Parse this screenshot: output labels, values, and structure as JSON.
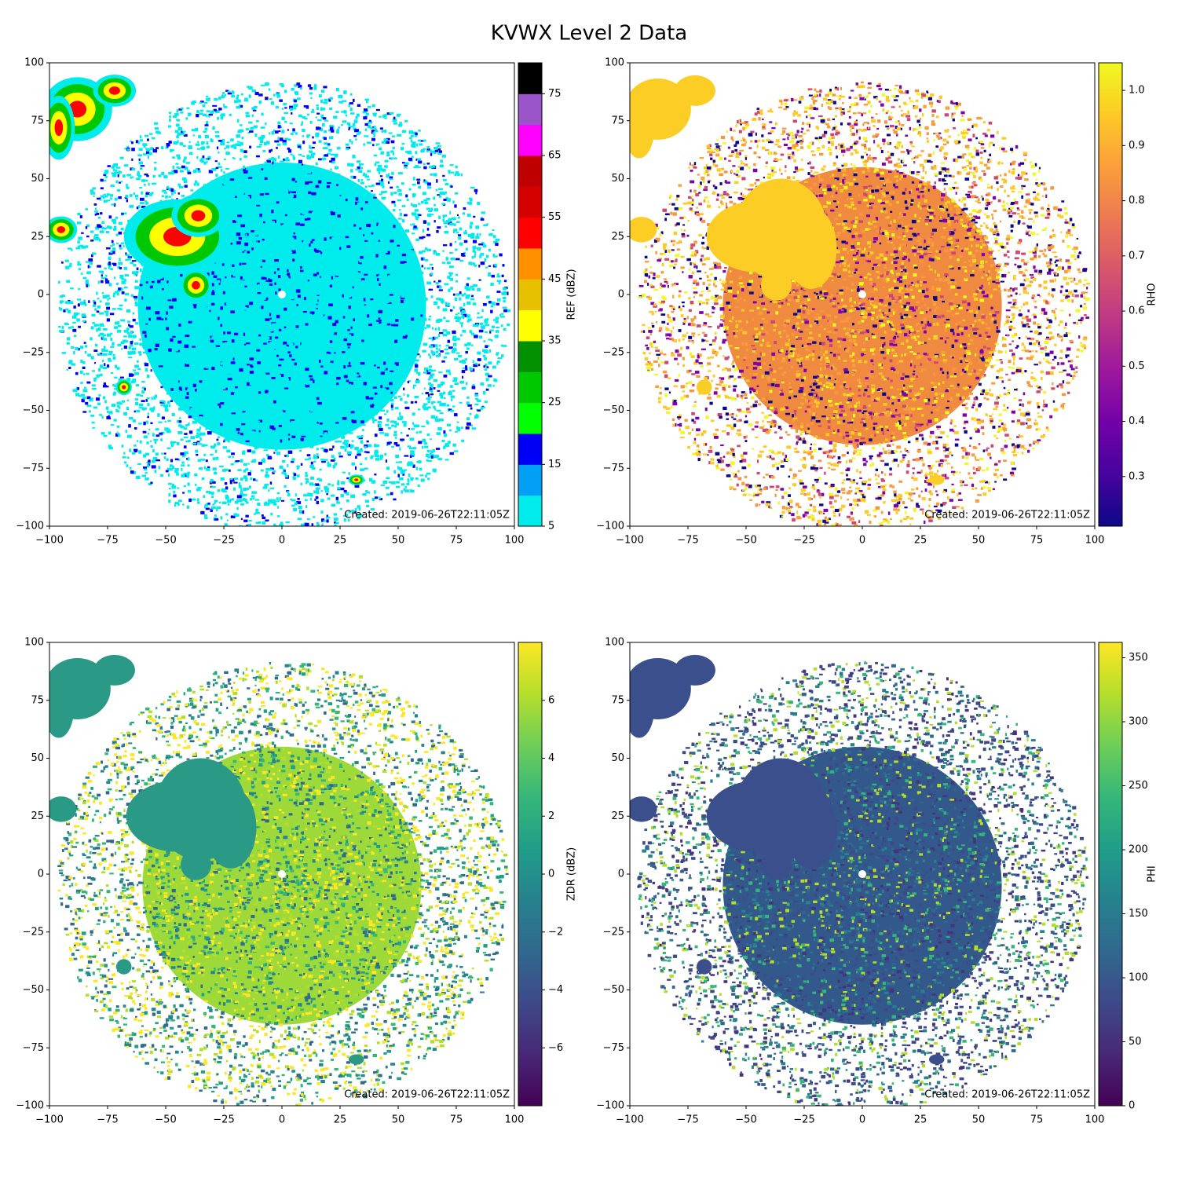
{
  "title": "KVWX Level 2 Data",
  "chart_data": [
    {
      "type": "radar",
      "xlim": [
        -100,
        100
      ],
      "ylim": [
        -100,
        100
      ],
      "xticks": [
        {
          "value": -100,
          "label": "−100"
        },
        {
          "value": -75,
          "label": "−75"
        },
        {
          "value": -50,
          "label": "−50"
        },
        {
          "value": -25,
          "label": "−25"
        },
        0,
        25,
        50,
        75,
        100
      ],
      "yticks": [
        {
          "value": -100,
          "label": "−100"
        },
        {
          "value": -75,
          "label": "−75"
        },
        {
          "value": -50,
          "label": "−50"
        },
        {
          "value": -25,
          "label": "−25"
        },
        0,
        25,
        50,
        75,
        100
      ],
      "annotation": "Created: 2019-06-26T22:11:05Z",
      "colorbar": {
        "label": "REF (dBZ)",
        "lim": [
          5,
          80
        ],
        "ticks": [
          5,
          15,
          25,
          35,
          45,
          55,
          65,
          75
        ],
        "discrete": true,
        "colors": [
          "#00ecec",
          "#01a0f6",
          "#0000f6",
          "#00ff00",
          "#00c800",
          "#009000",
          "#ffff00",
          "#e7c000",
          "#ff9000",
          "#ff0000",
          "#d60000",
          "#c00000",
          "#ff00ff",
          "#9955c9",
          "#000000"
        ]
      }
    },
    {
      "type": "radar",
      "xlim": [
        -100,
        100
      ],
      "ylim": [
        -100,
        100
      ],
      "xticks": [
        {
          "value": -100,
          "label": "−100"
        },
        {
          "value": -75,
          "label": "−75"
        },
        {
          "value": -50,
          "label": "−50"
        },
        {
          "value": -25,
          "label": "−25"
        },
        0,
        25,
        50,
        75,
        100
      ],
      "yticks": [
        {
          "value": -100,
          "label": "−100"
        },
        {
          "value": -75,
          "label": "−75"
        },
        {
          "value": -50,
          "label": "−50"
        },
        {
          "value": -25,
          "label": "−25"
        },
        0,
        25,
        50,
        75,
        100
      ],
      "annotation": "Created: 2019-06-26T22:11:05Z",
      "colorbar": {
        "label": "RHO",
        "lim": [
          0.21,
          1.05
        ],
        "ticks": [
          0.3,
          0.4,
          0.5,
          0.6,
          0.7,
          0.8,
          0.9,
          {
            "value": 1.0,
            "label": "1.0"
          }
        ],
        "discrete": false,
        "colors": [
          "#0d0887",
          "#46039f",
          "#7201a8",
          "#9c179e",
          "#bd3786",
          "#d8576b",
          "#ed7953",
          "#fb9f3a",
          "#fdca26",
          "#f0f921"
        ]
      }
    },
    {
      "type": "radar",
      "xlim": [
        -100,
        100
      ],
      "ylim": [
        -100,
        100
      ],
      "xticks": [
        {
          "value": -100,
          "label": "−100"
        },
        {
          "value": -75,
          "label": "−75"
        },
        {
          "value": -50,
          "label": "−50"
        },
        {
          "value": -25,
          "label": "−25"
        },
        0,
        25,
        50,
        75,
        100
      ],
      "yticks": [
        {
          "value": -100,
          "label": "−100"
        },
        {
          "value": -75,
          "label": "−75"
        },
        {
          "value": -50,
          "label": "−50"
        },
        {
          "value": -25,
          "label": "−25"
        },
        0,
        25,
        50,
        75,
        100
      ],
      "annotation": "Created: 2019-06-26T22:11:05Z",
      "colorbar": {
        "label": "ZDR (dBZ)",
        "lim": [
          -8,
          8
        ],
        "ticks": [
          {
            "value": -6,
            "label": "−6"
          },
          {
            "value": -4,
            "label": "−4"
          },
          {
            "value": -2,
            "label": "−2"
          },
          0,
          2,
          4,
          6
        ],
        "discrete": false,
        "colors": [
          "#440154",
          "#482878",
          "#3e4989",
          "#31688e",
          "#26828e",
          "#1f9e89",
          "#35b779",
          "#6ece58",
          "#b5de2b",
          "#fde725"
        ]
      }
    },
    {
      "type": "radar",
      "xlim": [
        -100,
        100
      ],
      "ylim": [
        -100,
        100
      ],
      "xticks": [
        {
          "value": -100,
          "label": "−100"
        },
        {
          "value": -75,
          "label": "−75"
        },
        {
          "value": -50,
          "label": "−50"
        },
        {
          "value": -25,
          "label": "−25"
        },
        0,
        25,
        50,
        75,
        100
      ],
      "yticks": [
        {
          "value": -100,
          "label": "−100"
        },
        {
          "value": -75,
          "label": "−75"
        },
        {
          "value": -50,
          "label": "−50"
        },
        {
          "value": -25,
          "label": "−25"
        },
        0,
        25,
        50,
        75,
        100
      ],
      "annotation": "Created: 2019-06-26T22:11:05Z",
      "colorbar": {
        "label": "PHI",
        "lim": [
          0,
          362
        ],
        "ticks": [
          0,
          50,
          100,
          150,
          200,
          250,
          300,
          350
        ],
        "discrete": false,
        "colors": [
          "#440154",
          "#482878",
          "#3e4989",
          "#31688e",
          "#26828e",
          "#1f9e89",
          "#35b779",
          "#6ece58",
          "#b5de2b",
          "#fde725"
        ]
      }
    }
  ]
}
